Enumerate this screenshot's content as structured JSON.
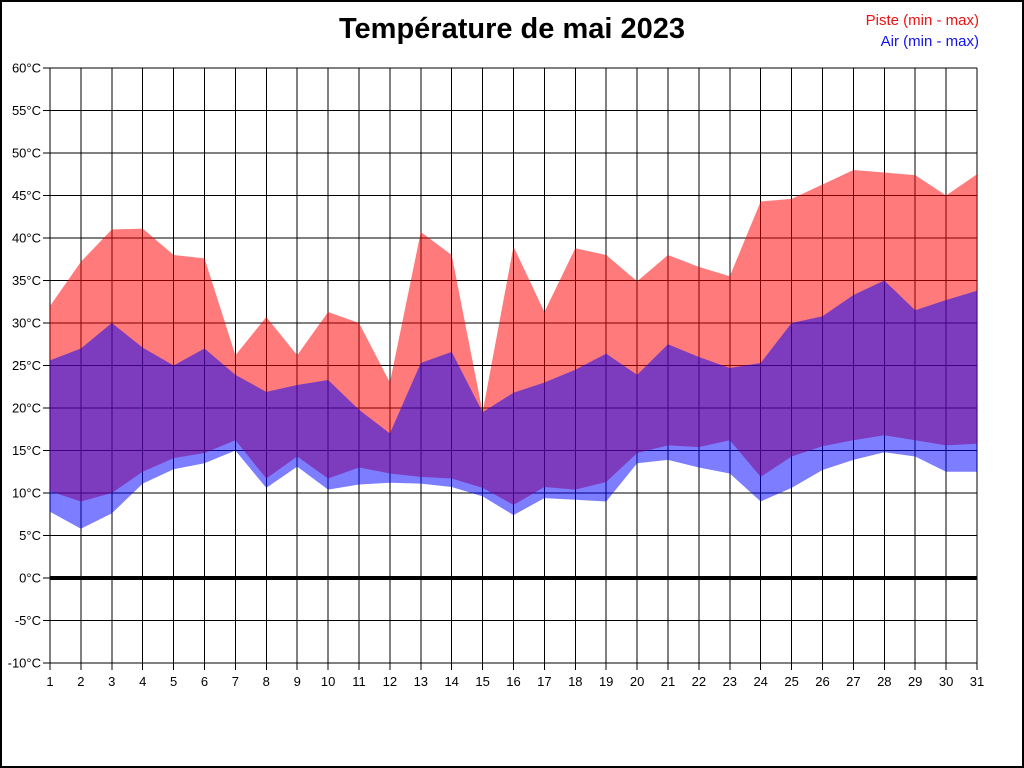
{
  "title": "Température de mai 2023",
  "legend": {
    "piste_label": "Piste (min - max)",
    "piste_color": "#ee1111",
    "air_label": "Air (min - max)",
    "air_color": "#1111ee"
  },
  "chart_data": {
    "type": "area",
    "title": "Température de mai 2023",
    "xlabel": "",
    "ylabel": "",
    "x": [
      1,
      2,
      3,
      4,
      5,
      6,
      7,
      8,
      9,
      10,
      11,
      12,
      13,
      14,
      15,
      16,
      17,
      18,
      19,
      20,
      21,
      22,
      23,
      24,
      25,
      26,
      27,
      28,
      29,
      30,
      31
    ],
    "ylim": [
      -10,
      60
    ],
    "y_tick_step": 5,
    "y_tick_suffix": "°C",
    "grid": true,
    "legend_position": "top-right",
    "zero_line": {
      "value": 0,
      "color": "#000000",
      "width": 4
    },
    "gridline_color": "#000000",
    "series": [
      {
        "name": "Piste (min - max)",
        "fill": "rgba(255,0,0,0.52)",
        "max": [
          32.0,
          37.2,
          41.0,
          41.1,
          38.0,
          37.6,
          26.2,
          30.7,
          26.2,
          31.3,
          30.0,
          23.0,
          40.7,
          38.0,
          19.5,
          39.0,
          31.3,
          38.8,
          38.0,
          34.9,
          38.0,
          36.6,
          35.5,
          44.3,
          44.6,
          46.3,
          48.0,
          47.7,
          47.4,
          45.0,
          47.5
        ],
        "min": [
          10.2,
          9.0,
          10.0,
          12.5,
          14.1,
          14.7,
          16.2,
          11.7,
          14.3,
          11.7,
          13.0,
          12.3,
          11.9,
          11.7,
          10.6,
          8.6,
          10.7,
          10.4,
          11.3,
          14.7,
          15.6,
          15.4,
          16.2,
          11.9,
          14.3,
          15.5,
          16.2,
          16.8,
          16.2,
          15.6,
          15.8
        ]
      },
      {
        "name": "Air (min - max)",
        "fill": "rgba(0,0,255,0.51)",
        "max": [
          25.6,
          27.0,
          30.0,
          27.1,
          25.0,
          27.0,
          23.9,
          21.9,
          22.7,
          23.3,
          19.8,
          17.0,
          25.3,
          26.6,
          19.5,
          21.8,
          23.0,
          24.5,
          26.4,
          23.9,
          27.5,
          26.0,
          24.7,
          25.3,
          30.0,
          30.8,
          33.3,
          35.0,
          31.5,
          32.7,
          33.8
        ],
        "min": [
          7.8,
          5.8,
          7.6,
          11.1,
          12.8,
          13.5,
          15.0,
          10.6,
          13.1,
          10.4,
          11.0,
          11.2,
          11.1,
          10.7,
          9.6,
          7.4,
          9.4,
          9.2,
          9.0,
          13.5,
          13.9,
          13.0,
          12.3,
          9.0,
          10.6,
          12.7,
          13.9,
          14.8,
          14.3,
          12.5,
          12.5
        ]
      }
    ]
  }
}
